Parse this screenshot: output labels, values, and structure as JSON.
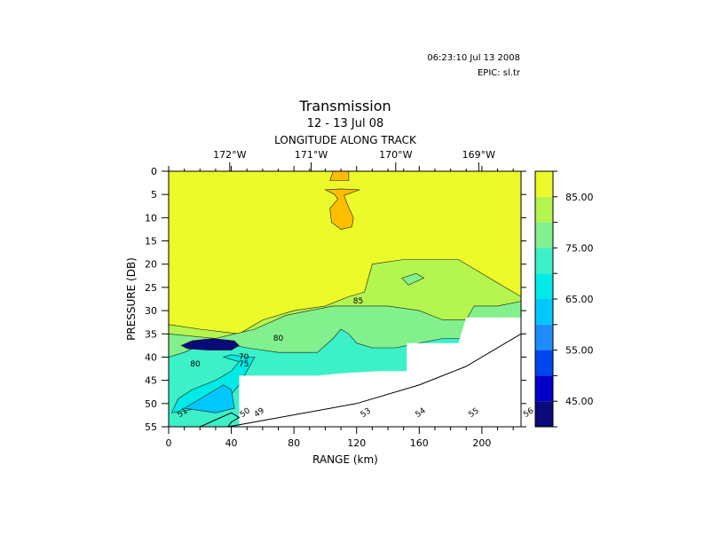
{
  "header": {
    "timestamp": "06:23:10 Jul 13 2008",
    "epic": "EPIC:  sl.tr"
  },
  "chart_data": {
    "type": "heatmap",
    "title": "Transmission",
    "subtitle": "12 - 13 Jul 08",
    "top_axis_label": "LONGITUDE ALONG TRACK",
    "xlabel": "RANGE (km)",
    "ylabel": "PRESSURE (DB)",
    "xlim": [
      0,
      225
    ],
    "ylim": [
      55,
      0
    ],
    "x_ticks": [
      0,
      40,
      80,
      120,
      160,
      200
    ],
    "x_tick_labels": [
      "0",
      "40",
      "80",
      "120",
      "160",
      "200"
    ],
    "y_ticks": [
      0,
      5,
      10,
      15,
      20,
      25,
      30,
      35,
      40,
      45,
      50,
      55
    ],
    "y_tick_labels": [
      "0",
      "5",
      "10",
      "15",
      "20",
      "25",
      "30",
      "35",
      "40",
      "45",
      "50",
      "55"
    ],
    "top_ticks": [
      39,
      91,
      145,
      198
    ],
    "top_tick_labels": [
      "172°W",
      "171°W",
      "170°W",
      "169°W"
    ],
    "colorbar": {
      "range": [
        40,
        90
      ],
      "levels": [
        40,
        45,
        50,
        55,
        60,
        65,
        70,
        75,
        80,
        85,
        90
      ],
      "colors": [
        "#0a0a78",
        "#0000c8",
        "#0046f0",
        "#1e8cff",
        "#00c8ff",
        "#00ebe6",
        "#3cf0c8",
        "#82f08c",
        "#b4f550",
        "#ebfa28"
      ],
      "tick_values": [
        45,
        55,
        65,
        75,
        85
      ],
      "tick_labels": [
        "45.00",
        "55.00",
        "65.00",
        "75.00",
        "85.00"
      ]
    },
    "regions": [
      {
        "color": "#b4f550",
        "points": [
          [
            0,
            33
          ],
          [
            20,
            34
          ],
          [
            45,
            35
          ],
          [
            60,
            32
          ],
          [
            80,
            30
          ],
          [
            100,
            29
          ],
          [
            115,
            27
          ],
          [
            125,
            26
          ],
          [
            130,
            20
          ],
          [
            150,
            19
          ],
          [
            185,
            19
          ],
          [
            210,
            24
          ],
          [
            225,
            27
          ],
          [
            225,
            55
          ],
          [
            0,
            55
          ]
        ]
      },
      {
        "color": "#82f08c",
        "points": [
          [
            0,
            35
          ],
          [
            30,
            36
          ],
          [
            55,
            34
          ],
          [
            75,
            31
          ],
          [
            105,
            29
          ],
          [
            140,
            29
          ],
          [
            160,
            30
          ],
          [
            175,
            32
          ],
          [
            190,
            32
          ],
          [
            195,
            29
          ],
          [
            210,
            29
          ],
          [
            225,
            28
          ],
          [
            225,
            55
          ],
          [
            0,
            55
          ]
        ]
      },
      {
        "color": "#82f08c",
        "points": [
          [
            149,
            23
          ],
          [
            158,
            22
          ],
          [
            163,
            23
          ],
          [
            153,
            24.5
          ]
        ]
      },
      {
        "color": "#3cf0c8",
        "points": [
          [
            0,
            40
          ],
          [
            10,
            39
          ],
          [
            20,
            37.5
          ],
          [
            35,
            37
          ],
          [
            50,
            38
          ],
          [
            70,
            39
          ],
          [
            95,
            39
          ],
          [
            105,
            36
          ],
          [
            110,
            34
          ],
          [
            115,
            35
          ],
          [
            120,
            37
          ],
          [
            130,
            38
          ],
          [
            145,
            38
          ],
          [
            160,
            37
          ],
          [
            175,
            36
          ],
          [
            190,
            36
          ],
          [
            225,
            35
          ],
          [
            225,
            55
          ],
          [
            0,
            55
          ]
        ]
      },
      {
        "color": "#00ebe6",
        "points": [
          [
            2,
            52
          ],
          [
            6,
            49
          ],
          [
            15,
            47
          ],
          [
            30,
            45
          ],
          [
            40,
            43
          ],
          [
            45,
            41
          ],
          [
            35,
            40
          ],
          [
            40,
            39.5
          ],
          [
            50,
            40
          ],
          [
            55,
            40
          ],
          [
            50,
            43
          ],
          [
            45,
            46
          ],
          [
            40,
            48
          ],
          [
            20,
            51
          ]
        ]
      },
      {
        "color": "#00c8ff",
        "points": [
          [
            10,
            51
          ],
          [
            20,
            49
          ],
          [
            35,
            46
          ],
          [
            40,
            47
          ],
          [
            42,
            51
          ],
          [
            30,
            52
          ]
        ]
      },
      {
        "color": "#0a0a78",
        "points": [
          [
            8,
            37.5
          ],
          [
            15,
            36.5
          ],
          [
            28,
            36
          ],
          [
            42,
            36.5
          ],
          [
            45,
            37.5
          ],
          [
            40,
            38.5
          ],
          [
            25,
            38.5
          ],
          [
            12,
            38.2
          ]
        ]
      },
      {
        "color": "#ffbe00",
        "points": [
          [
            105,
            0
          ],
          [
            115,
            0
          ],
          [
            115,
            2
          ],
          [
            103,
            2
          ]
        ]
      },
      {
        "color": "#ffbe00",
        "points": [
          [
            100,
            4
          ],
          [
            110,
            3.8
          ],
          [
            122,
            4
          ],
          [
            112,
            5.2
          ],
          [
            114,
            7
          ],
          [
            118,
            10
          ],
          [
            117,
            12
          ],
          [
            110,
            12.5
          ],
          [
            104,
            11
          ],
          [
            103,
            8
          ],
          [
            108,
            6
          ],
          [
            106,
            5
          ]
        ]
      }
    ],
    "contour_labels": [
      {
        "x": 121,
        "y": 28.5,
        "text": "85"
      },
      {
        "x": 70,
        "y": 36.5,
        "text": "80"
      },
      {
        "x": 17,
        "y": 42,
        "text": "80"
      },
      {
        "x": 48,
        "y": 40.5,
        "text": "70"
      },
      {
        "x": 48,
        "y": 42,
        "text": "75"
      }
    ],
    "masked_region": [
      [
        225,
        31.5
      ],
      [
        190,
        31.5
      ],
      [
        185,
        37
      ],
      [
        152,
        37
      ],
      [
        152,
        43
      ],
      [
        135,
        43
      ],
      [
        110,
        43.5
      ],
      [
        95,
        44
      ],
      [
        45,
        44
      ],
      [
        45,
        55
      ],
      [
        225,
        55
      ]
    ],
    "bottom_track": [
      [
        20,
        55
      ],
      [
        40,
        52
      ],
      [
        45,
        53
      ],
      [
        40,
        54
      ],
      [
        38,
        55
      ],
      [
        120,
        50
      ],
      [
        160,
        46
      ],
      [
        190,
        42
      ],
      [
        225,
        35
      ]
    ],
    "track_labels": [
      {
        "x": 7,
        "y": 53,
        "text": "51"
      },
      {
        "x": 47,
        "y": 53,
        "text": "50"
      },
      {
        "x": 56,
        "y": 53,
        "text": "49"
      },
      {
        "x": 124,
        "y": 53,
        "text": "53"
      },
      {
        "x": 159,
        "y": 53,
        "text": "54"
      },
      {
        "x": 193,
        "y": 53,
        "text": "55"
      },
      {
        "x": 228,
        "y": 53,
        "text": "56"
      }
    ]
  }
}
